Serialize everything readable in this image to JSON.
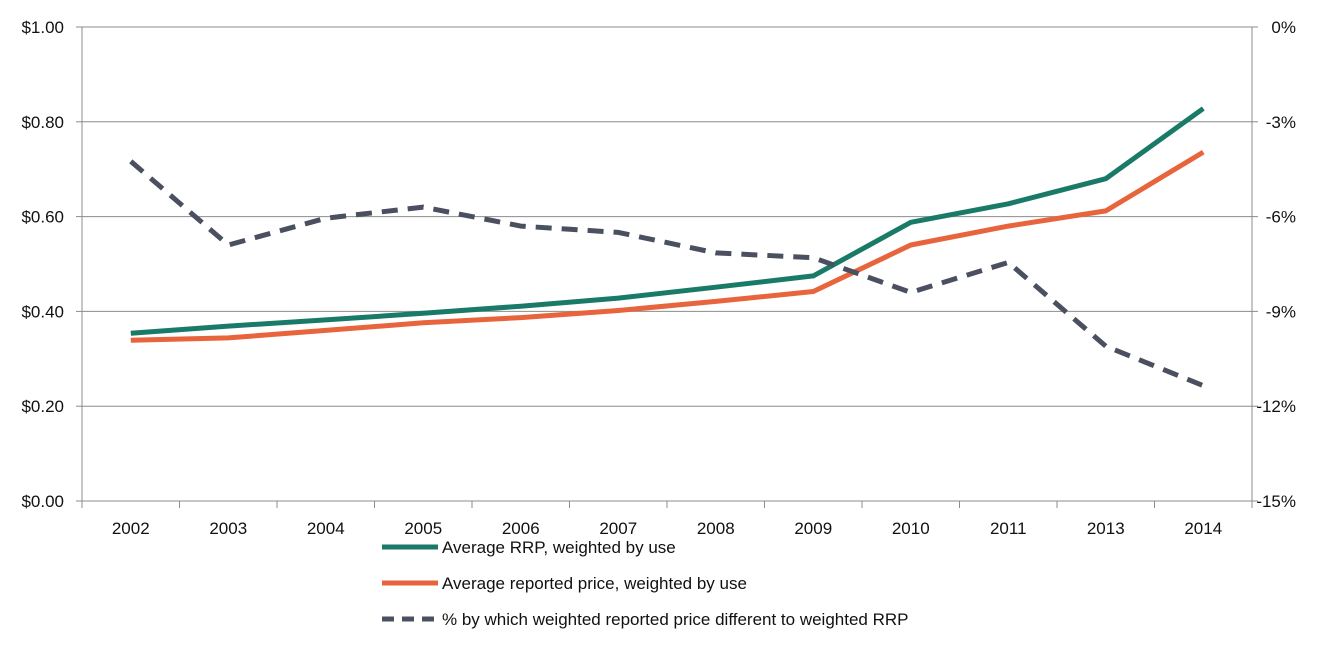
{
  "chart_data": {
    "type": "line",
    "categories": [
      "2002",
      "2003",
      "2004",
      "2005",
      "2006",
      "2007",
      "2008",
      "2009",
      "2010",
      "2011",
      "2013",
      "2014"
    ],
    "left_axis": {
      "ylim": [
        0,
        1.0
      ],
      "ticks": [
        0,
        0.2,
        0.4,
        0.6,
        0.8,
        1.0
      ],
      "tick_labels": [
        "$0.00",
        "$0.20",
        "$0.40",
        "$0.60",
        "$0.80",
        "$1.00"
      ]
    },
    "right_axis": {
      "ylim": [
        -15,
        0
      ],
      "ticks": [
        -15,
        -12,
        -9,
        -6,
        -3,
        0
      ],
      "tick_labels": [
        "-15%",
        "-12%",
        "-9%",
        "-6%",
        "-3%",
        "0%"
      ]
    },
    "grid": true,
    "legend_position": "bottom",
    "series": [
      {
        "name": "Average RRP, weighted by use",
        "axis": "left",
        "color": "#1a7a68",
        "style": "solid",
        "values": [
          0.354,
          0.369,
          0.382,
          0.396,
          0.411,
          0.428,
          0.451,
          0.475,
          0.588,
          0.627,
          0.68,
          0.828
        ]
      },
      {
        "name": "Average reported price, weighted by use",
        "axis": "left",
        "color": "#e8643c",
        "style": "solid",
        "values": [
          0.339,
          0.344,
          0.36,
          0.376,
          0.387,
          0.402,
          0.421,
          0.442,
          0.54,
          0.58,
          0.612,
          0.736
        ]
      },
      {
        "name": "% by which weighted reported price different to weighted RRP",
        "axis": "right",
        "color": "#4a5060",
        "style": "dashed",
        "values": [
          -4.25,
          -6.9,
          -6.05,
          -5.7,
          -6.3,
          -6.5,
          -7.15,
          -7.3,
          -8.4,
          -7.45,
          -10.1,
          -11.35
        ]
      }
    ]
  }
}
